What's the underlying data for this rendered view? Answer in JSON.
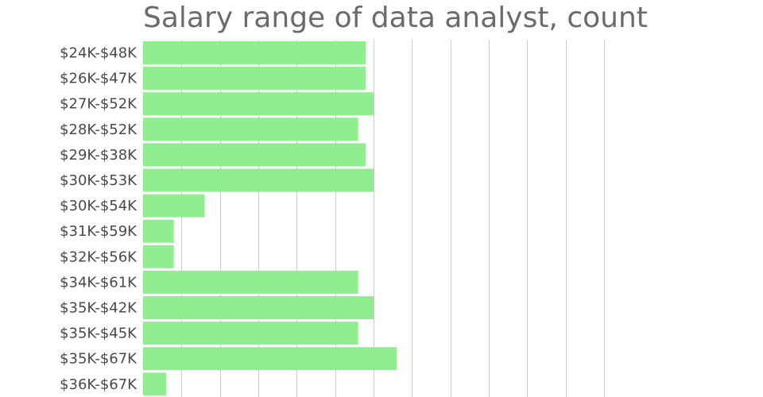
{
  "chart_data": {
    "type": "bar",
    "orientation": "horizontal",
    "title": "Salary range of data analyst, count",
    "xlabel": "",
    "ylabel": "",
    "categories": [
      "$24K-$48K",
      "$26K-$47K",
      "$27K-$52K",
      "$28K-$52K",
      "$29K-$38K",
      "$30K-$53K",
      "$30K-$54K",
      "$31K-$59K",
      "$32K-$56K",
      "$34K-$61K",
      "$35K-$42K",
      "$35K-$45K",
      "$35K-$67K",
      "$36K-$67K"
    ],
    "values": [
      29,
      29,
      30,
      28,
      29,
      30,
      8,
      4,
      4,
      28,
      30,
      28,
      33,
      3
    ],
    "xlim": [
      0,
      60
    ],
    "x_gridline_step": 5,
    "grid": true,
    "legend": "none",
    "colors": {
      "bar": "#90ee90",
      "grid": "#cccccc",
      "title": "#6b6b6b",
      "tick": "#4a4a4a"
    }
  }
}
